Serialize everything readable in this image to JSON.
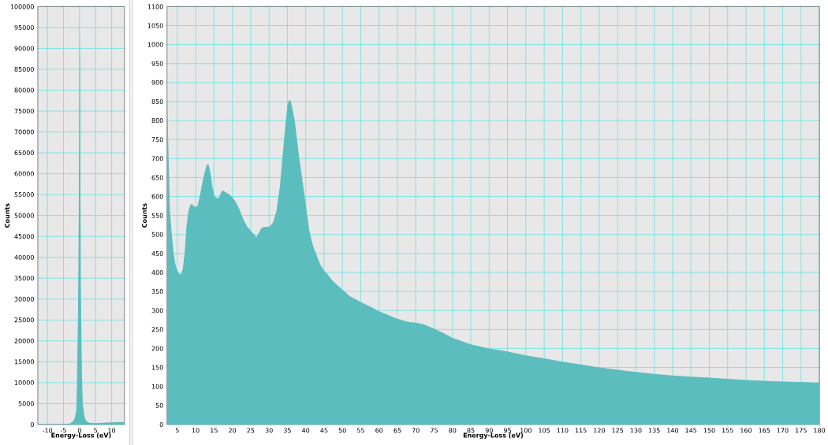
{
  "chart_data": [
    {
      "type": "area",
      "xlabel": "Energy-Loss (eV)",
      "ylabel": "Counts",
      "color": "#5bbdbd",
      "grid": true,
      "xlim": [
        -13,
        14
      ],
      "ylim": [
        0,
        100000
      ],
      "xticks": [
        -10,
        -5,
        0,
        5,
        10
      ],
      "yticks": [
        0,
        5000,
        10000,
        15000,
        20000,
        25000,
        30000,
        35000,
        40000,
        45000,
        50000,
        55000,
        60000,
        65000,
        70000,
        75000,
        80000,
        85000,
        90000,
        95000,
        100000
      ],
      "x": [
        -13,
        -5,
        -3,
        -2,
        -1.5,
        -1,
        -0.8,
        -0.5,
        -0.3,
        -0.1,
        0,
        0.1,
        0.2,
        0.3,
        0.4,
        0.6,
        0.8,
        1,
        1.5,
        2,
        3,
        5,
        10,
        14
      ],
      "values": [
        0,
        0,
        200,
        800,
        1500,
        3500,
        10000,
        25000,
        43500,
        70000,
        97500,
        91000,
        85000,
        57000,
        34000,
        20000,
        10000,
        5000,
        2000,
        900,
        400,
        300,
        500,
        600
      ]
    },
    {
      "type": "area",
      "xlabel": "Energy-Loss (eV)",
      "ylabel": "Counts",
      "color": "#5bbdbd",
      "grid": true,
      "xlim": [
        2.2,
        180
      ],
      "ylim": [
        0,
        1100
      ],
      "xticks": [
        5,
        10,
        15,
        20,
        25,
        30,
        35,
        40,
        45,
        50,
        55,
        60,
        65,
        70,
        75,
        80,
        85,
        90,
        95,
        100,
        105,
        110,
        115,
        120,
        125,
        130,
        135,
        140,
        145,
        150,
        155,
        160,
        165,
        170,
        175,
        180
      ],
      "yticks": [
        0,
        50,
        100,
        150,
        200,
        250,
        300,
        350,
        400,
        450,
        500,
        550,
        600,
        650,
        700,
        750,
        800,
        850,
        900,
        950,
        1000,
        1050,
        1100
      ],
      "x": [
        2.2,
        2.5,
        3,
        3.5,
        4,
        4.5,
        5,
        5.5,
        6,
        6.5,
        7,
        7.5,
        8,
        8.5,
        9,
        9.5,
        10,
        10.5,
        11,
        11.5,
        12,
        12.5,
        13,
        13.5,
        14,
        14.5,
        15,
        15.5,
        16,
        16.5,
        17,
        17.5,
        18,
        19,
        20,
        21,
        22,
        23,
        24,
        25,
        26,
        26.5,
        27,
        28,
        29,
        30,
        31,
        32,
        33,
        34,
        35,
        35.5,
        36,
        37,
        38,
        39,
        40,
        41,
        42,
        43,
        44,
        45,
        46,
        47,
        48,
        50,
        52,
        55,
        58,
        60,
        62,
        65,
        68,
        70,
        72,
        75,
        78,
        80,
        85,
        90,
        95,
        100,
        105,
        110,
        115,
        120,
        125,
        130,
        135,
        140,
        145,
        150,
        155,
        160,
        165,
        170,
        175,
        180
      ],
      "values": [
        880,
        750,
        560,
        500,
        450,
        420,
        405,
        397,
        395,
        410,
        450,
        520,
        560,
        578,
        580,
        575,
        572,
        575,
        595,
        620,
        645,
        665,
        683,
        685,
        665,
        630,
        605,
        597,
        595,
        600,
        612,
        616,
        612,
        607,
        598,
        585,
        565,
        540,
        522,
        510,
        500,
        493,
        500,
        518,
        520,
        520,
        530,
        560,
        630,
        740,
        840,
        855,
        850,
        800,
        720,
        650,
        580,
        510,
        470,
        445,
        420,
        405,
        395,
        382,
        372,
        355,
        338,
        322,
        308,
        298,
        290,
        278,
        270,
        268,
        264,
        252,
        238,
        228,
        211,
        200,
        192,
        182,
        174,
        165,
        158,
        150,
        144,
        138,
        133,
        129,
        126,
        123,
        120,
        117,
        115,
        113,
        112,
        110
      ]
    }
  ]
}
